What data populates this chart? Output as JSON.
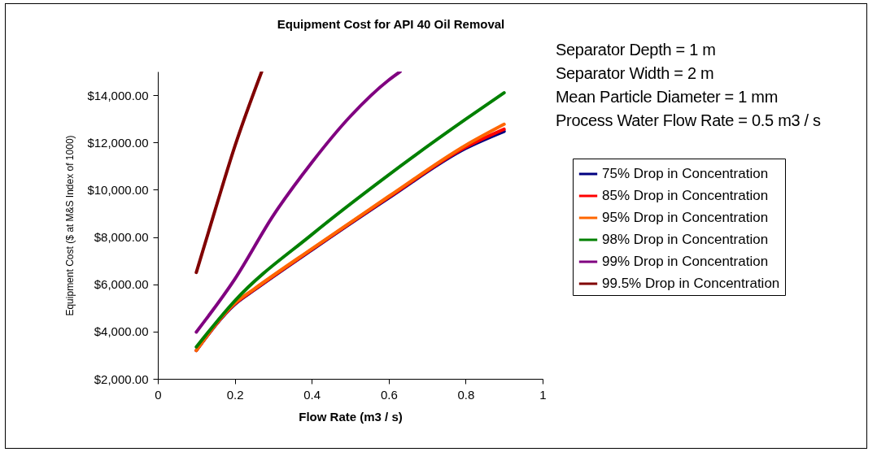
{
  "chart_data": {
    "type": "line",
    "title": "Equipment Cost for API 40 Oil Removal",
    "xlabel": "Flow Rate (m3 / s)",
    "ylabel": "Equipment Cost ($ at M&S Index of 1000)",
    "annotations": [
      "Separator Depth = 1 m",
      "Separator Width = 2 m",
      "Mean Particle Diameter = 1 mm",
      "Process Water Flow Rate = 0.5 m3 / s"
    ],
    "xlim": [
      0,
      1
    ],
    "xticks": [
      0,
      0.2,
      0.4,
      0.6,
      0.8,
      1
    ],
    "ylim": [
      2000,
      15000
    ],
    "yticks": [
      {
        "value": 2000,
        "label": "$2,000.00"
      },
      {
        "value": 4000,
        "label": "$4,000.00"
      },
      {
        "value": 6000,
        "label": "$6,000.00"
      },
      {
        "value": 8000,
        "label": "$8,000.00"
      },
      {
        "value": 10000,
        "label": "$10,000.00"
      },
      {
        "value": 12000,
        "label": "$12,000.00"
      },
      {
        "value": 14000,
        "label": "$14,000.00"
      }
    ],
    "grid": false,
    "legend": "right",
    "marker": "none",
    "line_style": "solid",
    "series": [
      {
        "name": "75% Drop in Concentration",
        "color": "#000080",
        "x": [
          0.1,
          0.2,
          0.25,
          0.4,
          0.6,
          0.8,
          0.9
        ],
        "values": [
          3200,
          5150,
          5750,
          7450,
          9650,
          11750,
          12470
        ]
      },
      {
        "name": "85% Drop in Concentration",
        "color": "#ff0000",
        "x": [
          0.1,
          0.2,
          0.25,
          0.4,
          0.6,
          0.8,
          0.9
        ],
        "values": [
          3200,
          5170,
          5770,
          7470,
          9680,
          11800,
          12560
        ]
      },
      {
        "name": "95% Drop in Concentration",
        "color": "#ff6600",
        "x": [
          0.1,
          0.2,
          0.25,
          0.4,
          0.6,
          0.8,
          0.9
        ],
        "values": [
          3200,
          5200,
          5800,
          7500,
          9720,
          11880,
          12770
        ]
      },
      {
        "name": "98% Drop in Concentration",
        "color": "#008000",
        "x": [
          0.1,
          0.2,
          0.4,
          0.6,
          0.8,
          0.9
        ],
        "values": [
          3350,
          5300,
          8100,
          10630,
          12980,
          14100
        ]
      },
      {
        "name": "99% Drop in Concentration",
        "color": "#800080",
        "x": [
          0.1,
          0.2,
          0.3,
          0.4,
          0.5,
          0.6,
          0.63
        ],
        "values": [
          3980,
          6220,
          8910,
          11150,
          13100,
          14640,
          15000
        ]
      },
      {
        "name": "99.5% Drop in Concentration",
        "color": "#800000",
        "x": [
          0.1,
          0.15,
          0.2,
          0.27
        ],
        "values": [
          6500,
          9200,
          11830,
          15000
        ]
      }
    ]
  }
}
